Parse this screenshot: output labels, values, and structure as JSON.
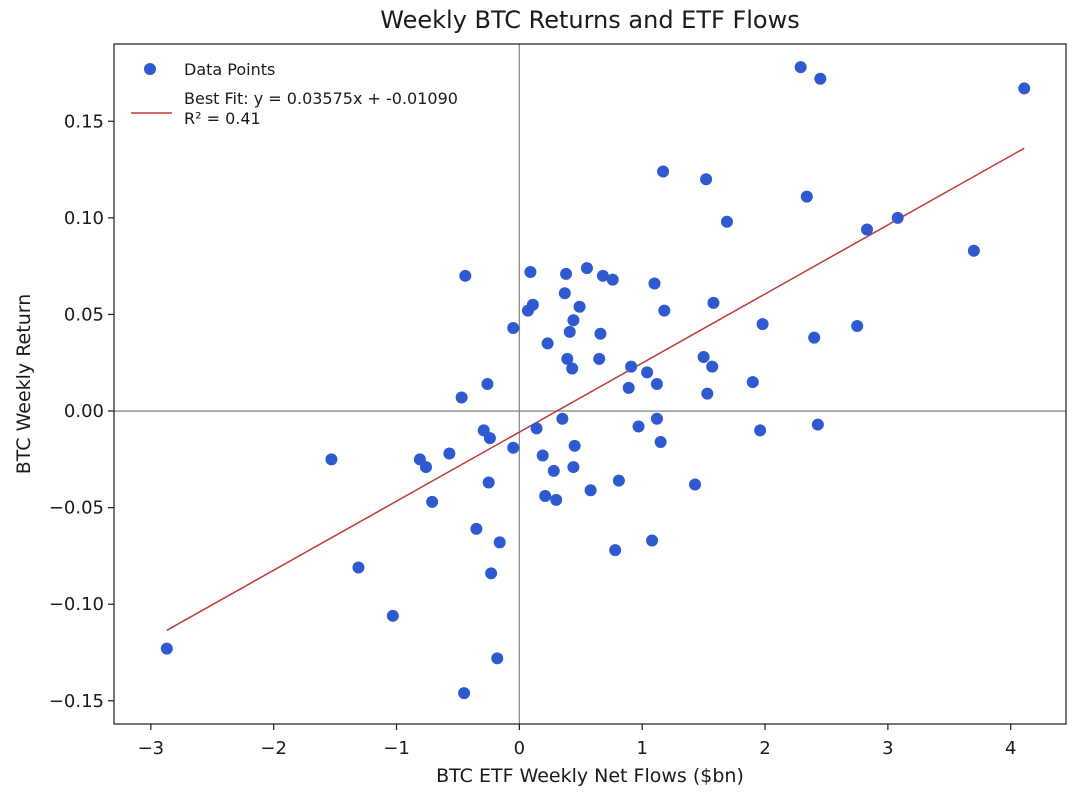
{
  "chart_data": {
    "type": "scatter",
    "title": "Weekly BTC Returns and ETF Flows",
    "xlabel": "BTC ETF Weekly Net Flows ($bn)",
    "ylabel": "BTC Weekly Return",
    "xlim": [
      -3.3,
      4.45
    ],
    "ylim": [
      -0.162,
      0.19
    ],
    "x_ticks": [
      -3,
      -2,
      -1,
      0,
      1,
      2,
      3,
      4
    ],
    "x_tick_labels": [
      "−3",
      "−2",
      "−1",
      "0",
      "1",
      "2",
      "3",
      "4"
    ],
    "y_ticks": [
      -0.15,
      -0.1,
      -0.05,
      0.0,
      0.05,
      0.1,
      0.15
    ],
    "y_tick_labels": [
      "−0.15",
      "−0.10",
      "−0.05",
      "0.00",
      "0.05",
      "0.10",
      "0.15"
    ],
    "grid": false,
    "reference_lines": {
      "x": 0,
      "y": 0
    },
    "legend_position": "top-left",
    "colors": {
      "points": "#2f59cf",
      "fit_line": "#c0393b",
      "ref_lines": "#8c8c8c"
    },
    "series": [
      {
        "name": "Data Points",
        "kind": "scatter",
        "points": [
          [
            -2.87,
            -0.123
          ],
          [
            -1.53,
            -0.025
          ],
          [
            -1.31,
            -0.081
          ],
          [
            -1.03,
            -0.106
          ],
          [
            -0.81,
            -0.025
          ],
          [
            -0.76,
            -0.029
          ],
          [
            -0.71,
            -0.047
          ],
          [
            -0.57,
            -0.022
          ],
          [
            -0.47,
            0.007
          ],
          [
            -0.45,
            -0.146
          ],
          [
            -0.44,
            0.07
          ],
          [
            -0.35,
            -0.061
          ],
          [
            -0.29,
            -0.01
          ],
          [
            -0.26,
            0.014
          ],
          [
            -0.25,
            -0.037
          ],
          [
            -0.24,
            -0.014
          ],
          [
            -0.23,
            -0.084
          ],
          [
            -0.18,
            -0.128
          ],
          [
            -0.16,
            -0.068
          ],
          [
            -0.05,
            -0.019
          ],
          [
            -0.05,
            0.043
          ],
          [
            0.07,
            0.052
          ],
          [
            0.09,
            0.072
          ],
          [
            0.11,
            0.055
          ],
          [
            0.14,
            -0.009
          ],
          [
            0.19,
            -0.023
          ],
          [
            0.21,
            -0.044
          ],
          [
            0.23,
            0.035
          ],
          [
            0.28,
            -0.031
          ],
          [
            0.3,
            -0.046
          ],
          [
            0.35,
            -0.004
          ],
          [
            0.37,
            0.061
          ],
          [
            0.38,
            0.071
          ],
          [
            0.39,
            0.027
          ],
          [
            0.41,
            0.041
          ],
          [
            0.43,
            0.022
          ],
          [
            0.44,
            0.047
          ],
          [
            0.44,
            -0.029
          ],
          [
            0.45,
            -0.018
          ],
          [
            0.49,
            0.054
          ],
          [
            0.55,
            0.074
          ],
          [
            0.58,
            -0.041
          ],
          [
            0.65,
            0.027
          ],
          [
            0.66,
            0.04
          ],
          [
            0.68,
            0.07
          ],
          [
            0.76,
            0.068
          ],
          [
            0.78,
            -0.072
          ],
          [
            0.81,
            -0.036
          ],
          [
            0.89,
            0.012
          ],
          [
            0.91,
            0.023
          ],
          [
            0.97,
            -0.008
          ],
          [
            1.04,
            0.02
          ],
          [
            1.08,
            -0.067
          ],
          [
            1.1,
            0.066
          ],
          [
            1.12,
            0.014
          ],
          [
            1.12,
            -0.004
          ],
          [
            1.15,
            -0.016
          ],
          [
            1.17,
            0.124
          ],
          [
            1.18,
            0.052
          ],
          [
            1.43,
            -0.038
          ],
          [
            1.5,
            0.028
          ],
          [
            1.52,
            0.12
          ],
          [
            1.53,
            0.009
          ],
          [
            1.57,
            0.023
          ],
          [
            1.58,
            0.056
          ],
          [
            1.69,
            0.098
          ],
          [
            1.9,
            0.015
          ],
          [
            1.96,
            -0.01
          ],
          [
            1.98,
            0.045
          ],
          [
            2.29,
            0.178
          ],
          [
            2.34,
            0.111
          ],
          [
            2.4,
            0.038
          ],
          [
            2.43,
            -0.007
          ],
          [
            2.45,
            0.172
          ],
          [
            2.75,
            0.044
          ],
          [
            2.83,
            0.094
          ],
          [
            3.08,
            0.1
          ],
          [
            3.7,
            0.083
          ],
          [
            4.11,
            0.167
          ]
        ]
      },
      {
        "name": "Best Fit: y = 0.03575x + -0.01090",
        "name_line2": "R² = 0.41",
        "kind": "line",
        "slope": 0.03575,
        "intercept": -0.0109,
        "x_range": [
          -2.87,
          4.11
        ]
      }
    ]
  }
}
